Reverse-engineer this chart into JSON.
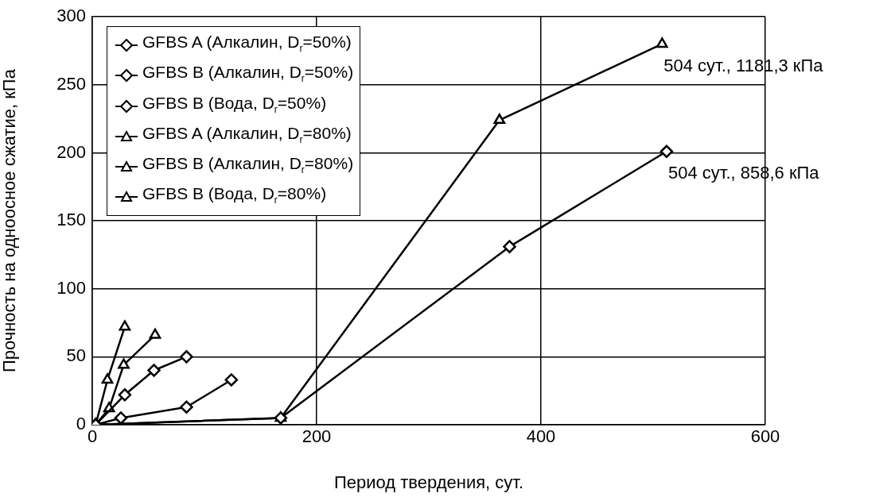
{
  "chart_data": {
    "type": "line",
    "xlabel": "Период твердения, сут.",
    "ylabel": "Прочность на одноосное сжатие, кПа",
    "xlim": [
      0,
      600
    ],
    "xticks": [
      0,
      200,
      400,
      600
    ],
    "ylim": [
      0,
      300
    ],
    "yticks": [
      0,
      50,
      100,
      150,
      200,
      250,
      300
    ],
    "grid": true,
    "legend": "top left",
    "series": [
      {
        "name": "GFBS A (Алкалин, D$_{r}$=50%)",
        "color": "#000000",
        "marker": "diamond",
        "x": [
          3,
          25.5,
          84,
          124
        ],
        "values": [
          0,
          5,
          13,
          33
        ]
      },
      {
        "name": "GFBS B (Алкалин, D$_{r}$=50%)",
        "color": "#000000",
        "marker": "diamond",
        "x": [
          3,
          29,
          55,
          84
        ],
        "values": [
          0,
          22,
          40,
          50
        ]
      },
      {
        "name": "GFBS B (Вода, D$_{r}$=50%)",
        "color": "#000000",
        "marker": "diamond",
        "x": [
          3,
          168,
          372,
          512
        ],
        "values": [
          0,
          5,
          131,
          201
        ]
      },
      {
        "name": "GFBS A (Алкалин, D$_{r}$=80%)",
        "color": "#000000",
        "marker": "triangle",
        "x": [
          3,
          15,
          28,
          56
        ],
        "values": [
          0,
          12,
          44,
          66
        ]
      },
      {
        "name": "GFBS B (Алкалин, D$_{r}$=80%)",
        "color": "#000000",
        "marker": "triangle",
        "x": [
          3,
          13.5,
          29
        ],
        "values": [
          0,
          33,
          72
        ]
      },
      {
        "name": "GFBS B (Вода, D$_{r}$=80%)",
        "color": "#000000",
        "marker": "triangle",
        "x": [
          3,
          168,
          363,
          508
        ],
        "values": [
          0,
          5,
          224,
          280
        ]
      }
    ],
    "annotations": [
      {
        "text": "504 сут., 1181,3 кПа",
        "x": 508,
        "y": 280
      },
      {
        "text": "504 сут., 858,6 кПа",
        "x": 512,
        "y": 201
      }
    ]
  }
}
